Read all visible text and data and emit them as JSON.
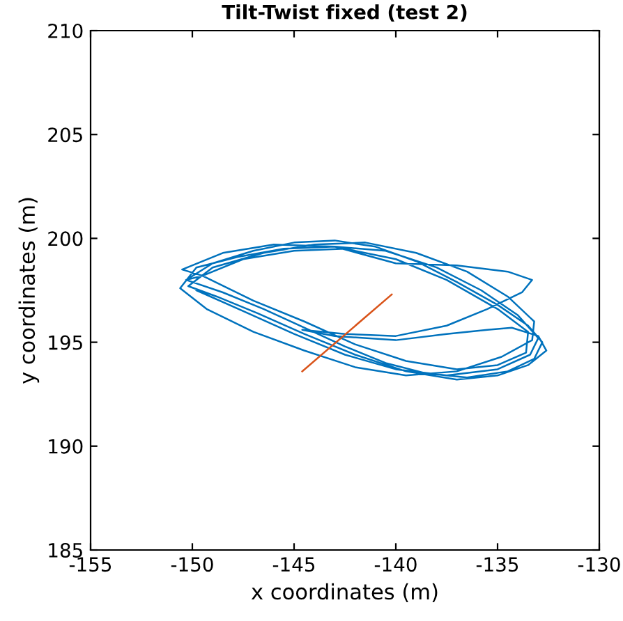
{
  "chart_data": {
    "type": "line",
    "title": "Tilt-Twist fixed (test 2)",
    "xlabel": "x coordinates (m)",
    "ylabel": "y coordinates (m)",
    "xlim": [
      -155,
      -130
    ],
    "ylim": [
      185,
      210
    ],
    "xticks": [
      -155,
      -150,
      -145,
      -140,
      -135,
      -130
    ],
    "yticks": [
      185,
      190,
      195,
      200,
      205,
      210
    ],
    "grid": false,
    "legend": false,
    "marker": "none",
    "line_style": "solid",
    "series": [
      {
        "color": "#0072bd",
        "x": [
          -150.3,
          -149,
          -147,
          -145,
          -143,
          -141,
          -139,
          -137,
          -135,
          -133.5,
          -132.8,
          -133.2,
          -134.5,
          -136.5,
          -138.5,
          -140.5,
          -142.5,
          -144.5,
          -146.5,
          -148.5,
          -150.3,
          -149.5,
          -147.5,
          -145,
          -142.5,
          -140,
          -137.5,
          -135,
          -133.5,
          -133.6,
          -135,
          -137,
          -139.5,
          -142,
          -144.5,
          -147,
          -149.5,
          -150.5,
          -148.5,
          -146,
          -143,
          -140,
          -137,
          -134.5,
          -133.3,
          -133.8,
          -135.5,
          -137.5,
          -140,
          -142.5,
          -144.6,
          -143,
          -140,
          -137.5,
          -135.5,
          -134.3,
          -133,
          -132.6,
          -133.5,
          -135,
          -137,
          -139.5,
          -142,
          -144.5,
          -146.8,
          -148.8,
          -150.2,
          -149,
          -146.5,
          -144,
          -141.5,
          -139,
          -136.5,
          -134.5,
          -133.2,
          -133.3,
          -134.8,
          -137,
          -139.5,
          -142,
          -144.5,
          -147,
          -149.3,
          -150.6,
          -149.8,
          -147.8,
          -145.5,
          -143,
          -140.5,
          -138,
          -135.8,
          -134,
          -133,
          -133.4,
          -135,
          -137.5,
          -140,
          -142.5,
          -145,
          -147.5,
          -149.8
        ],
        "values": [
          198.0,
          198.8,
          199.4,
          199.8,
          199.9,
          199.6,
          198.9,
          197.9,
          196.8,
          195.8,
          195.0,
          194.2,
          193.6,
          193.3,
          193.5,
          194.0,
          194.8,
          195.7,
          196.6,
          197.4,
          198.0,
          198.2,
          199.0,
          199.4,
          199.5,
          199.0,
          198.0,
          196.6,
          195.5,
          194.5,
          193.9,
          193.7,
          194.1,
          194.9,
          196.0,
          197.0,
          198.2,
          198.5,
          199.3,
          199.7,
          199.6,
          198.8,
          198.7,
          198.4,
          198.0,
          197.4,
          196.6,
          195.8,
          195.3,
          195.4,
          195.6,
          195.3,
          195.1,
          195.4,
          195.6,
          195.7,
          195.3,
          194.6,
          193.9,
          193.4,
          193.2,
          193.6,
          194.4,
          195.4,
          196.4,
          197.2,
          197.7,
          198.6,
          199.3,
          199.7,
          199.8,
          199.3,
          198.4,
          197.2,
          196.0,
          195.1,
          194.3,
          193.6,
          193.4,
          193.8,
          194.6,
          195.5,
          196.6,
          197.6,
          198.6,
          199.1,
          199.5,
          199.6,
          199.4,
          198.6,
          197.5,
          196.3,
          195.2,
          194.4,
          193.7,
          193.4,
          193.7,
          194.4,
          195.4,
          196.5,
          197.5
        ]
      },
      {
        "color": "#d95319",
        "x": [
          -144.6,
          -140.2
        ],
        "values": [
          193.6,
          197.3
        ]
      }
    ]
  }
}
